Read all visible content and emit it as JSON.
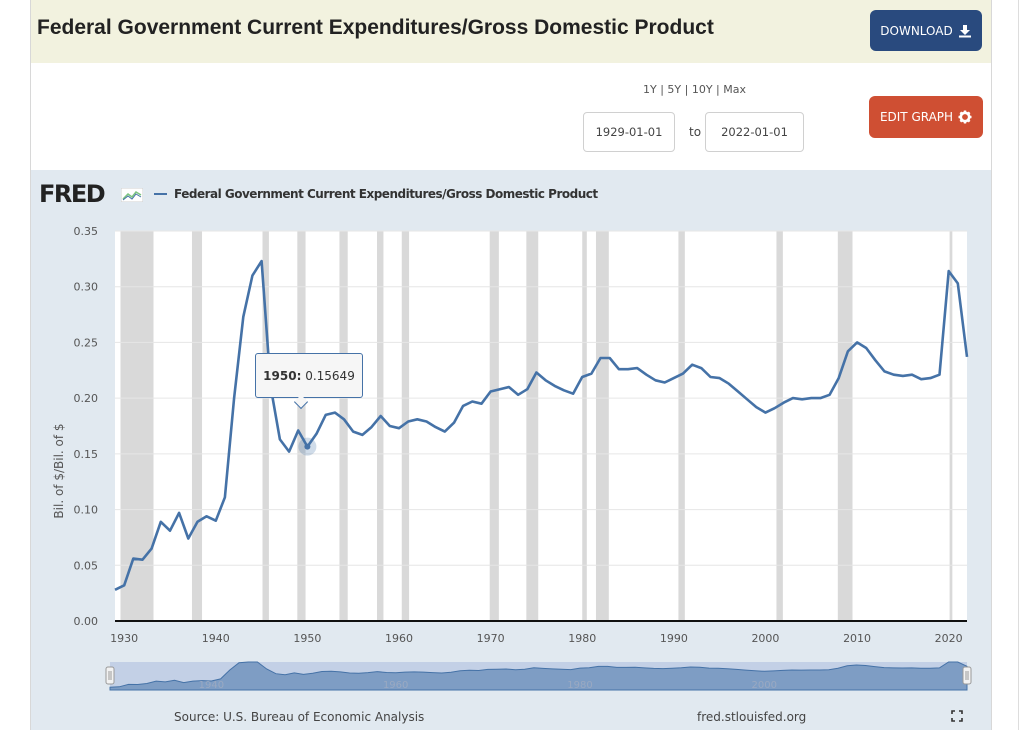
{
  "header": {
    "title": "Federal Government Current Expenditures/Gross Domestic Product",
    "download_label": "DOWNLOAD",
    "edit_graph_label": "EDIT GRAPH"
  },
  "range": {
    "links": "1Y | 5Y | 10Y | Max",
    "start_date": "1929-01-01",
    "to_label": "to",
    "end_date": "2022-01-01"
  },
  "chart": {
    "logo": "FRED",
    "legend": "Federal Government Current Expenditures/Gross Domestic Product",
    "tooltip_year": "1950:",
    "tooltip_value": "0.15649",
    "source": "Source: U.S. Bureau of Economic Analysis",
    "site": "fred.stlouisfed.org",
    "navigator_labels": [
      "1940",
      "1960",
      "1980",
      "2000"
    ]
  },
  "colors": {
    "line": "#4572a7",
    "background": "#e1e9f0",
    "recession": "#d9d9d9",
    "download_button": "#294a7e",
    "edit_button": "#cf4f33",
    "title_bar": "#f2f2df"
  },
  "icons": {
    "download": "download-icon",
    "edit": "gear-icon",
    "fullscreen": "fullscreen-icon"
  },
  "chart_data": {
    "type": "line",
    "title": "",
    "ylabel": "Bil. of $/Bil. of $",
    "ylim": [
      0,
      0.35
    ],
    "xlim": [
      1929,
      2022
    ],
    "yticks": [
      "0.00",
      "0.05",
      "0.10",
      "0.15",
      "0.20",
      "0.25",
      "0.30",
      "0.35"
    ],
    "xticks": [
      "1930",
      "1940",
      "1950",
      "1960",
      "1970",
      "1980",
      "1990",
      "2000",
      "2010",
      "2020"
    ],
    "grid": true,
    "legend_position": "top-left",
    "highlighted_point": {
      "x": 1950,
      "y": 0.15649
    },
    "recessions": [
      [
        1929.6,
        1933.2
      ],
      [
        1937.4,
        1938.5
      ],
      [
        1945.1,
        1945.8
      ],
      [
        1948.9,
        1949.8
      ],
      [
        1953.5,
        1954.4
      ],
      [
        1957.6,
        1958.3
      ],
      [
        1960.3,
        1961.1
      ],
      [
        1969.9,
        1970.9
      ],
      [
        1973.9,
        1975.2
      ],
      [
        1980.0,
        1980.5
      ],
      [
        1981.5,
        1982.9
      ],
      [
        1990.5,
        1991.2
      ],
      [
        2001.2,
        2001.9
      ],
      [
        2007.9,
        2009.5
      ],
      [
        2020.1,
        2020.4
      ]
    ],
    "series": [
      {
        "name": "Federal Government Current Expenditures/Gross Domestic Product",
        "x": [
          1929,
          1930,
          1931,
          1932,
          1933,
          1934,
          1935,
          1936,
          1937,
          1938,
          1939,
          1940,
          1941,
          1942,
          1943,
          1944,
          1945,
          1946,
          1947,
          1948,
          1949,
          1950,
          1951,
          1952,
          1953,
          1954,
          1955,
          1956,
          1957,
          1958,
          1959,
          1960,
          1961,
          1962,
          1963,
          1964,
          1965,
          1966,
          1967,
          1968,
          1969,
          1970,
          1971,
          1972,
          1973,
          1974,
          1975,
          1976,
          1977,
          1978,
          1979,
          1980,
          1981,
          1982,
          1983,
          1984,
          1985,
          1986,
          1987,
          1988,
          1989,
          1990,
          1991,
          1992,
          1993,
          1994,
          1995,
          1996,
          1997,
          1998,
          1999,
          2000,
          2001,
          2002,
          2003,
          2004,
          2005,
          2006,
          2007,
          2008,
          2009,
          2010,
          2011,
          2012,
          2013,
          2014,
          2015,
          2016,
          2017,
          2018,
          2019,
          2020,
          2021,
          2022
        ],
        "y": [
          0.028,
          0.032,
          0.056,
          0.055,
          0.065,
          0.089,
          0.081,
          0.097,
          0.074,
          0.089,
          0.094,
          0.09,
          0.111,
          0.2,
          0.273,
          0.31,
          0.323,
          0.21,
          0.163,
          0.152,
          0.171,
          0.15649,
          0.168,
          0.185,
          0.187,
          0.181,
          0.17,
          0.167,
          0.174,
          0.184,
          0.175,
          0.173,
          0.179,
          0.181,
          0.179,
          0.174,
          0.17,
          0.178,
          0.193,
          0.197,
          0.195,
          0.206,
          0.208,
          0.21,
          0.203,
          0.208,
          0.223,
          0.216,
          0.211,
          0.207,
          0.204,
          0.219,
          0.222,
          0.236,
          0.236,
          0.226,
          0.226,
          0.227,
          0.221,
          0.216,
          0.214,
          0.218,
          0.222,
          0.23,
          0.227,
          0.219,
          0.218,
          0.213,
          0.206,
          0.199,
          0.192,
          0.187,
          0.191,
          0.196,
          0.2,
          0.199,
          0.2,
          0.2,
          0.203,
          0.218,
          0.242,
          0.25,
          0.245,
          0.234,
          0.224,
          0.221,
          0.22,
          0.221,
          0.217,
          0.218,
          0.221,
          0.314,
          0.303,
          0.237
        ]
      }
    ]
  }
}
